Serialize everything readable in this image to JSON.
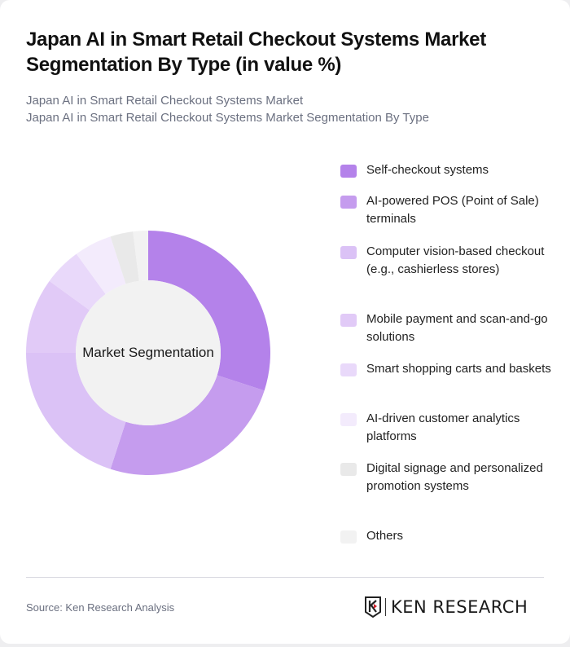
{
  "header": {
    "title": "Japan AI in Smart Retail Checkout Systems Market Segmentation By Type (in value %)",
    "subtitle_line1": "Japan AI in Smart Retail Checkout Systems Market",
    "subtitle_line2": "Japan AI in Smart Retail Checkout Systems Market Segmentation By Type"
  },
  "chart": {
    "center_label": "Market Segmentation"
  },
  "legend": [
    {
      "label": "Self-checkout systems",
      "color": "#b482ea"
    },
    {
      "label": "AI-powered POS (Point of Sale) terminals",
      "color": "#c59cee"
    },
    {
      "label": "Computer vision-based checkout (e.g., cashierless stores)",
      "color": "#dbc2f6"
    },
    {
      "label": "Mobile payment and scan-and-go solutions",
      "color": "#e1caf7"
    },
    {
      "label": "Smart shopping carts and baskets",
      "color": "#e9d9fa"
    },
    {
      "label": "AI-driven customer analytics platforms",
      "color": "#f3ebfc"
    },
    {
      "label": "Digital signage and personalized promotion systems",
      "color": "#e9e9e9"
    },
    {
      "label": "Others",
      "color": "#f2f2f2"
    }
  ],
  "footer": {
    "source": "Source: Ken Research Analysis",
    "logo_text": "KEN RESEARCH"
  },
  "chart_data": {
    "type": "pie",
    "subtype": "donut",
    "title": "Japan AI in Smart Retail Checkout Systems Market Segmentation By Type (in value %)",
    "center_label": "Market Segmentation",
    "categories": [
      "Self-checkout systems",
      "AI-powered POS (Point of Sale) terminals",
      "Computer vision-based checkout (e.g., cashierless stores)",
      "Mobile payment and scan-and-go solutions",
      "Smart shopping carts and baskets",
      "AI-driven customer analytics platforms",
      "Digital signage and personalized promotion systems",
      "Others"
    ],
    "values": [
      30,
      25,
      20,
      10,
      5,
      5,
      3,
      2
    ],
    "colors": [
      "#b482ea",
      "#c59cee",
      "#dbc2f6",
      "#e1caf7",
      "#e9d9fa",
      "#f3ebfc",
      "#e9e9e9",
      "#f2f2f2"
    ],
    "legend_position": "right",
    "units": "%"
  }
}
